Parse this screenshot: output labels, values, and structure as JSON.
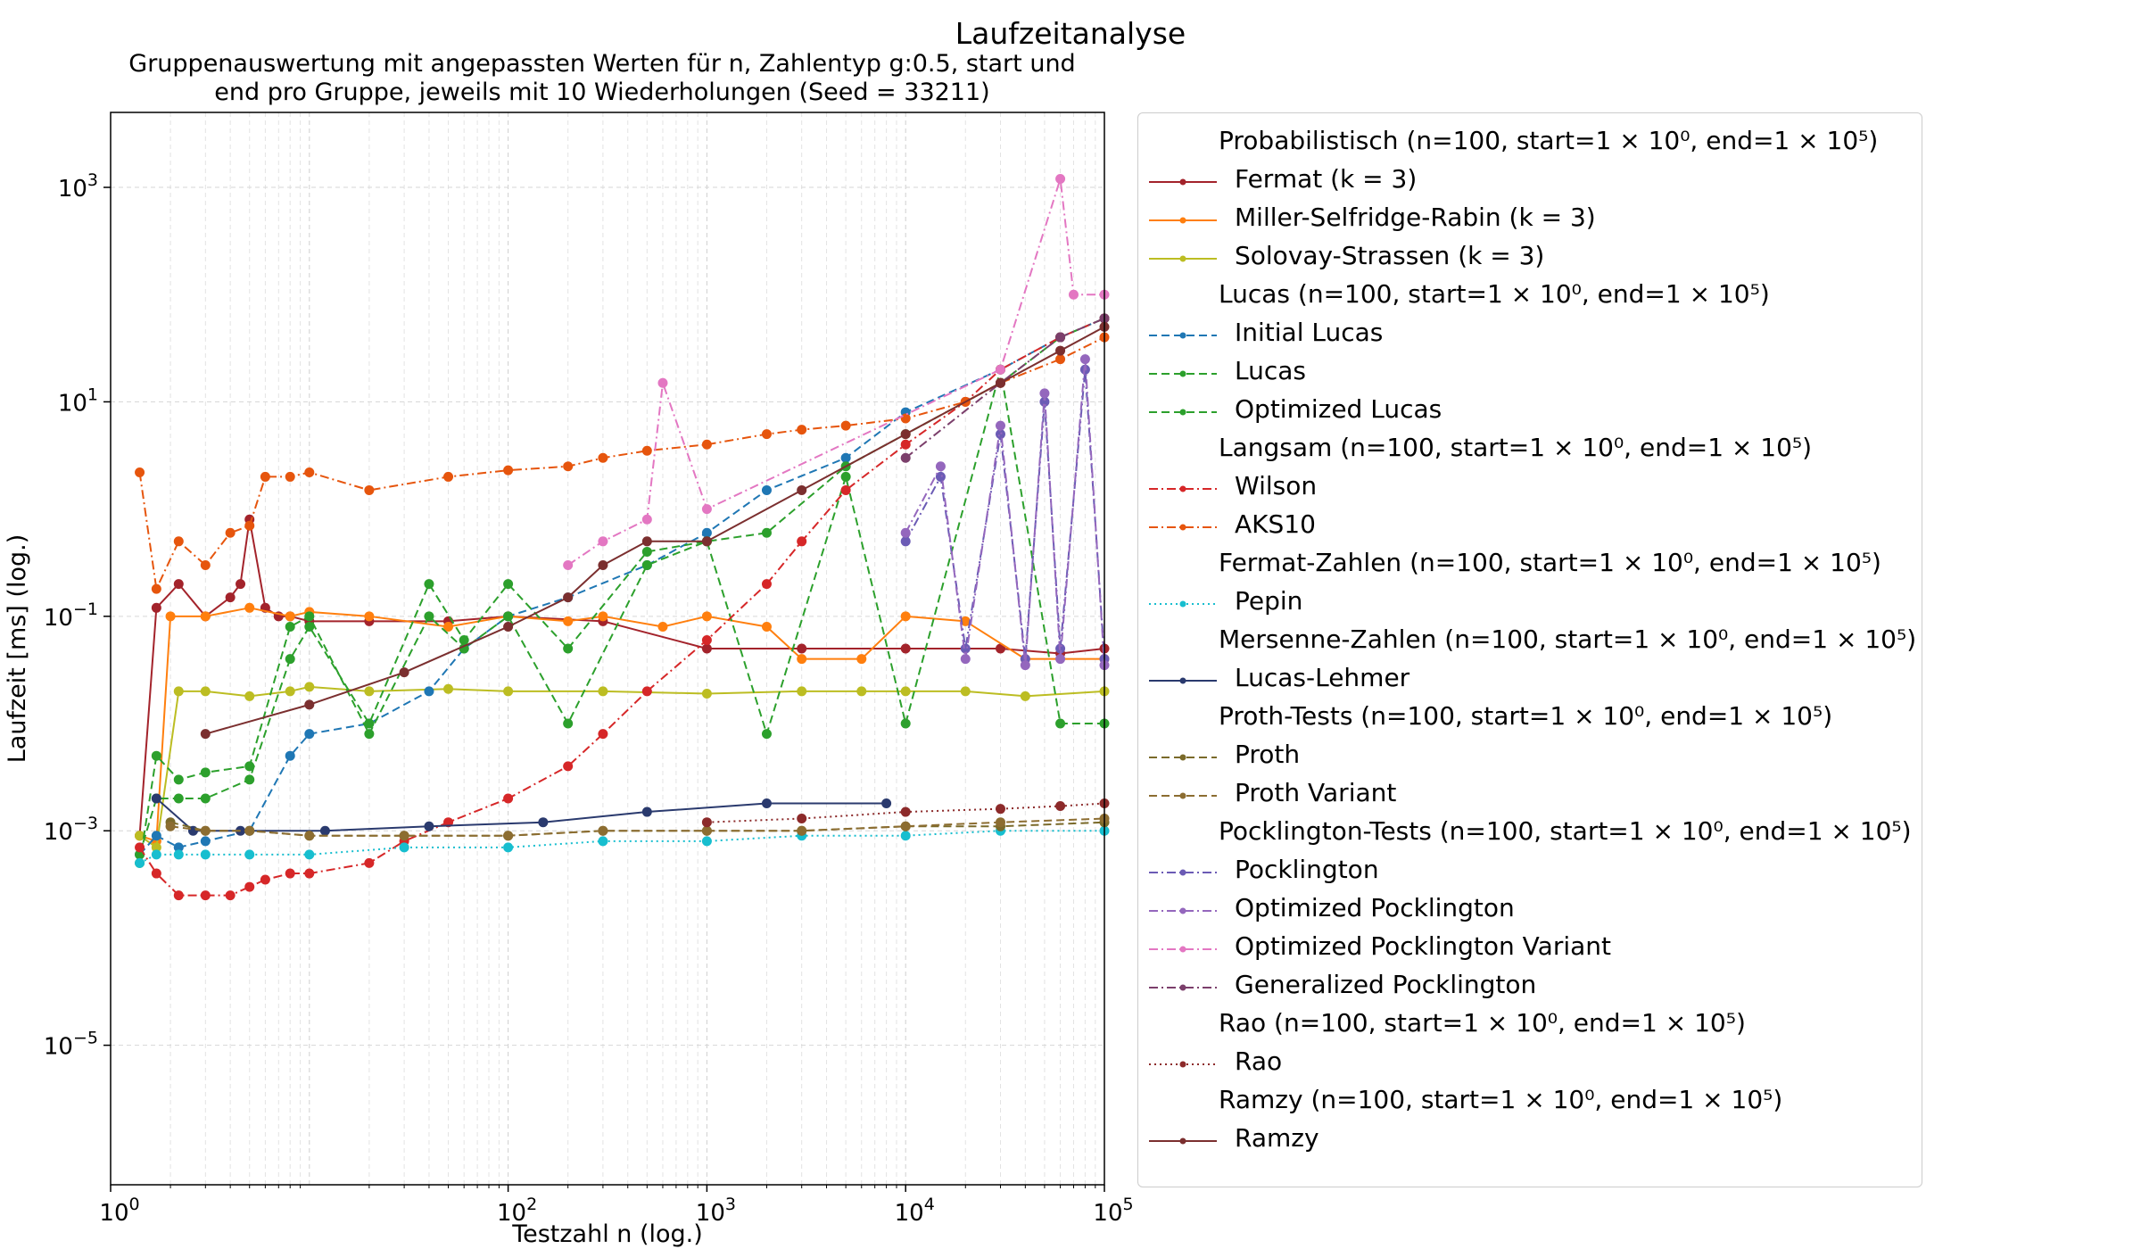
{
  "chart_data": {
    "type": "line",
    "title": "Laufzeitanalyse",
    "subtitle_lines": [
      "Gruppenauswertung mit angepassten Werten für n, Zahlentyp g:0.5, start und",
      "end pro Gruppe, jeweils mit 10 Wiederholungen (Seed = 33211)"
    ],
    "xlabel": "Testzahl n (log.)",
    "ylabel": "Laufzeit [ms] (log.)",
    "xscale": "log",
    "yscale": "log",
    "xlim": [
      1,
      100000
    ],
    "ylim": [
      5e-07,
      5000
    ],
    "x_ticks": [
      {
        "value": 1,
        "label": "10^0"
      },
      {
        "value": 100,
        "label": "10^2"
      },
      {
        "value": 1000,
        "label": "10^3"
      },
      {
        "value": 10000,
        "label": "10^4"
      },
      {
        "value": 100000,
        "label": "10^5"
      }
    ],
    "y_ticks": [
      {
        "value": 1e-05,
        "label": "10^−5"
      },
      {
        "value": 0.001,
        "label": "10^−3"
      },
      {
        "value": 0.1,
        "label": "10^−1"
      },
      {
        "value": 10,
        "label": "10^1"
      },
      {
        "value": 1000,
        "label": "10^3"
      }
    ],
    "grid": true,
    "legend_placement": "outside-right",
    "groups": [
      {
        "name": "Probabilistisch (n=100, start=1 × 10⁰, end=1 × 10⁵)",
        "series": [
          {
            "name": "Fermat (k = 3)",
            "color": "#a3232b",
            "style": "solid",
            "x": [
              1.4,
              1.7,
              2.2,
              3,
              4,
              4.5,
              5,
              6,
              7,
              8,
              10,
              20,
              50,
              100,
              300,
              1000,
              3000,
              10000,
              30000,
              60000,
              100000
            ],
            "y": [
              0.0009,
              0.12,
              0.2,
              0.1,
              0.15,
              0.2,
              0.8,
              0.12,
              0.1,
              0.1,
              0.09,
              0.09,
              0.09,
              0.1,
              0.09,
              0.05,
              0.05,
              0.05,
              0.05,
              0.045,
              0.05
            ]
          },
          {
            "name": "Miller-Selfridge-Rabin (k = 3)",
            "color": "#ff7f0e",
            "style": "solid",
            "x": [
              1.4,
              1.7,
              2,
              3,
              5,
              8,
              10,
              20,
              50,
              100,
              200,
              300,
              600,
              1000,
              2000,
              3000,
              6000,
              10000,
              20000,
              40000,
              100000
            ],
            "y": [
              0.0009,
              0.0008,
              0.1,
              0.1,
              0.12,
              0.1,
              0.11,
              0.1,
              0.08,
              0.1,
              0.09,
              0.1,
              0.08,
              0.1,
              0.08,
              0.04,
              0.04,
              0.1,
              0.09,
              0.04,
              0.04
            ]
          },
          {
            "name": "Solovay-Strassen (k = 3)",
            "color": "#bcbd22",
            "style": "solid",
            "x": [
              1.4,
              1.7,
              2.2,
              3,
              5,
              8,
              10,
              20,
              50,
              100,
              300,
              1000,
              3000,
              6000,
              10000,
              20000,
              40000,
              100000
            ],
            "y": [
              0.0009,
              0.0007,
              0.02,
              0.02,
              0.018,
              0.02,
              0.022,
              0.02,
              0.021,
              0.02,
              0.02,
              0.019,
              0.02,
              0.02,
              0.02,
              0.02,
              0.018,
              0.02
            ]
          }
        ]
      },
      {
        "name": "Lucas (n=100, start=1 × 10⁰, end=1 × 10⁵)",
        "series": [
          {
            "name": "Initial Lucas",
            "color": "#1f77b4",
            "style": "dashed",
            "x": [
              1.4,
              1.7,
              2.2,
              3,
              5,
              8,
              10,
              20,
              40,
              60,
              100,
              200,
              500,
              1000,
              2000,
              5000,
              10000,
              30000,
              60000,
              100000
            ],
            "y": [
              0.0006,
              0.0009,
              0.0007,
              0.0008,
              0.001,
              0.005,
              0.008,
              0.01,
              0.02,
              0.05,
              0.1,
              0.15,
              0.3,
              0.6,
              1.5,
              3,
              8,
              20,
              40,
              60
            ]
          },
          {
            "name": "Lucas",
            "color": "#2ca02c",
            "style": "dashed",
            "x": [
              1.4,
              1.7,
              2.2,
              3,
              5,
              8,
              10,
              20,
              40,
              60,
              100,
              200,
              500,
              1000,
              2000,
              5000,
              10000,
              30000,
              60000,
              100000
            ],
            "y": [
              0.0005,
              0.005,
              0.003,
              0.0035,
              0.004,
              0.08,
              0.1,
              0.008,
              0.1,
              0.05,
              0.1,
              0.01,
              0.3,
              0.5,
              0.008,
              2,
              0.01,
              20,
              0.01,
              0.01
            ]
          },
          {
            "name": "Optimized Lucas",
            "color": "#2ca02c",
            "style": "dashed",
            "x": [
              1.4,
              1.7,
              2.2,
              3,
              5,
              8,
              10,
              20,
              40,
              60,
              100,
              200,
              500,
              1000,
              2000,
              5000,
              10000,
              30000,
              60000,
              100000
            ],
            "y": [
              0.0006,
              0.002,
              0.002,
              0.002,
              0.003,
              0.04,
              0.08,
              0.01,
              0.2,
              0.06,
              0.2,
              0.05,
              0.4,
              0.5,
              0.6,
              2.5,
              5,
              15,
              40,
              60
            ]
          }
        ]
      },
      {
        "name": "Langsam (n=100, start=1 × 10⁰, end=1 × 10⁵)",
        "series": [
          {
            "name": "Wilson",
            "color": "#d62728",
            "style": "dashdot",
            "x": [
              1.4,
              1.7,
              2.2,
              3,
              4,
              5,
              6,
              8,
              10,
              20,
              30,
              50,
              100,
              200,
              300,
              500,
              1000,
              2000,
              3000,
              5000,
              10000,
              20000,
              30000,
              60000,
              100000
            ],
            "y": [
              0.0007,
              0.0004,
              0.00025,
              0.00025,
              0.00025,
              0.0003,
              0.00035,
              0.0004,
              0.0004,
              0.0005,
              0.0008,
              0.0012,
              0.002,
              0.004,
              0.008,
              0.02,
              0.06,
              0.2,
              0.5,
              1.5,
              4,
              10,
              20,
              40,
              60
            ]
          },
          {
            "name": "AKS10",
            "color": "#e6550d",
            "style": "dashdot",
            "x": [
              1.4,
              1.7,
              2.2,
              3,
              4,
              5,
              6,
              8,
              10,
              20,
              50,
              100,
              200,
              300,
              500,
              1000,
              2000,
              3000,
              5000,
              10000,
              20000,
              30000,
              60000,
              100000
            ],
            "y": [
              2.2,
              0.18,
              0.5,
              0.3,
              0.6,
              0.7,
              2,
              2,
              2.2,
              1.5,
              2,
              2.3,
              2.5,
              3,
              3.5,
              4,
              5,
              5.5,
              6,
              7,
              10,
              15,
              25,
              40
            ]
          }
        ]
      },
      {
        "name": "Fermat-Zahlen (n=100, start=1 × 10⁰, end=1 × 10⁵)",
        "series": [
          {
            "name": "Pepin",
            "color": "#17becf",
            "style": "dotted",
            "x": [
              1.4,
              1.7,
              2.2,
              3,
              5,
              10,
              30,
              100,
              300,
              1000,
              3000,
              10000,
              30000,
              100000
            ],
            "y": [
              0.0005,
              0.0006,
              0.0006,
              0.0006,
              0.0006,
              0.0006,
              0.0007,
              0.0007,
              0.0008,
              0.0008,
              0.0009,
              0.0009,
              0.001,
              0.001
            ]
          }
        ]
      },
      {
        "name": "Mersenne-Zahlen (n=100, start=1 × 10⁰, end=1 × 10⁵)",
        "series": [
          {
            "name": "Lucas-Lehmer",
            "color": "#2a3a6e",
            "style": "solid",
            "x": [
              1.7,
              2.6,
              4.5,
              12,
              40,
              150,
              500,
              2000,
              8000
            ],
            "y": [
              0.002,
              0.001,
              0.001,
              0.001,
              0.0011,
              0.0012,
              0.0015,
              0.0018,
              0.0018
            ]
          }
        ]
      },
      {
        "name": "Proth-Tests (n=100, start=1 × 10⁰, end=1 × 10⁵)",
        "series": [
          {
            "name": "Proth",
            "color": "#7a6a2a",
            "style": "dashed",
            "x": [
              2,
              3,
              5,
              10,
              30,
              100,
              300,
              1000,
              3000,
              10000,
              30000,
              100000
            ],
            "y": [
              0.0012,
              0.001,
              0.001,
              0.0009,
              0.0009,
              0.0009,
              0.001,
              0.001,
              0.001,
              0.0011,
              0.0011,
              0.0012
            ]
          },
          {
            "name": "Proth Variant",
            "color": "#8c6d31",
            "style": "dashed",
            "x": [
              2,
              3,
              5,
              10,
              30,
              100,
              300,
              1000,
              3000,
              10000,
              30000,
              100000
            ],
            "y": [
              0.0011,
              0.001,
              0.001,
              0.0009,
              0.0009,
              0.0009,
              0.001,
              0.001,
              0.001,
              0.0011,
              0.0012,
              0.0013
            ]
          }
        ]
      },
      {
        "name": "Pocklington-Tests (n=100, start=1 × 10⁰, end=1 × 10⁵)",
        "series": [
          {
            "name": "Pocklington",
            "color": "#6b5bb5",
            "style": "dashdot",
            "x": [
              10000,
              15000,
              20000,
              30000,
              40000,
              50000,
              60000,
              80000,
              100000
            ],
            "y": [
              0.5,
              2,
              0.05,
              5,
              0.04,
              10,
              0.05,
              20,
              0.04
            ]
          },
          {
            "name": "Optimized Pocklington",
            "color": "#9467bd",
            "style": "dashdot",
            "x": [
              10000,
              15000,
              20000,
              30000,
              40000,
              50000,
              60000,
              80000,
              100000
            ],
            "y": [
              0.6,
              2.5,
              0.04,
              6,
              0.035,
              12,
              0.04,
              25,
              0.035
            ]
          },
          {
            "name": "Optimized Pocklington Variant",
            "color": "#e377c2",
            "style": "dashdot",
            "x": [
              200,
              300,
              500,
              600,
              1000,
              30000,
              60000,
              70000,
              100000
            ],
            "y": [
              0.3,
              0.5,
              0.8,
              15,
              1,
              20,
              1200,
              100,
              100
            ]
          },
          {
            "name": "Generalized Pocklington",
            "color": "#7b3f6b",
            "style": "dashdot",
            "x": [
              10000,
              30000,
              60000,
              100000
            ],
            "y": [
              3,
              15,
              40,
              60
            ]
          }
        ]
      },
      {
        "name": "Rao (n=100, start=1 × 10⁰, end=1 × 10⁵)",
        "series": [
          {
            "name": "Rao",
            "color": "#8c2a2a",
            "style": "dotted",
            "x": [
              1000,
              3000,
              10000,
              30000,
              60000,
              100000
            ],
            "y": [
              0.0012,
              0.0013,
              0.0015,
              0.0016,
              0.0017,
              0.0018
            ]
          }
        ]
      },
      {
        "name": "Ramzy (n=100, start=1 × 10⁰, end=1 × 10⁵)",
        "series": [
          {
            "name": "Ramzy",
            "color": "#7b2f2f",
            "style": "solid",
            "x": [
              3,
              10,
              30,
              100,
              200,
              300,
              500,
              1000,
              3000,
              10000,
              30000,
              60000,
              100000
            ],
            "y": [
              0.008,
              0.015,
              0.03,
              0.08,
              0.15,
              0.3,
              0.5,
              0.5,
              1.5,
              5,
              15,
              30,
              50
            ]
          }
        ]
      }
    ]
  }
}
